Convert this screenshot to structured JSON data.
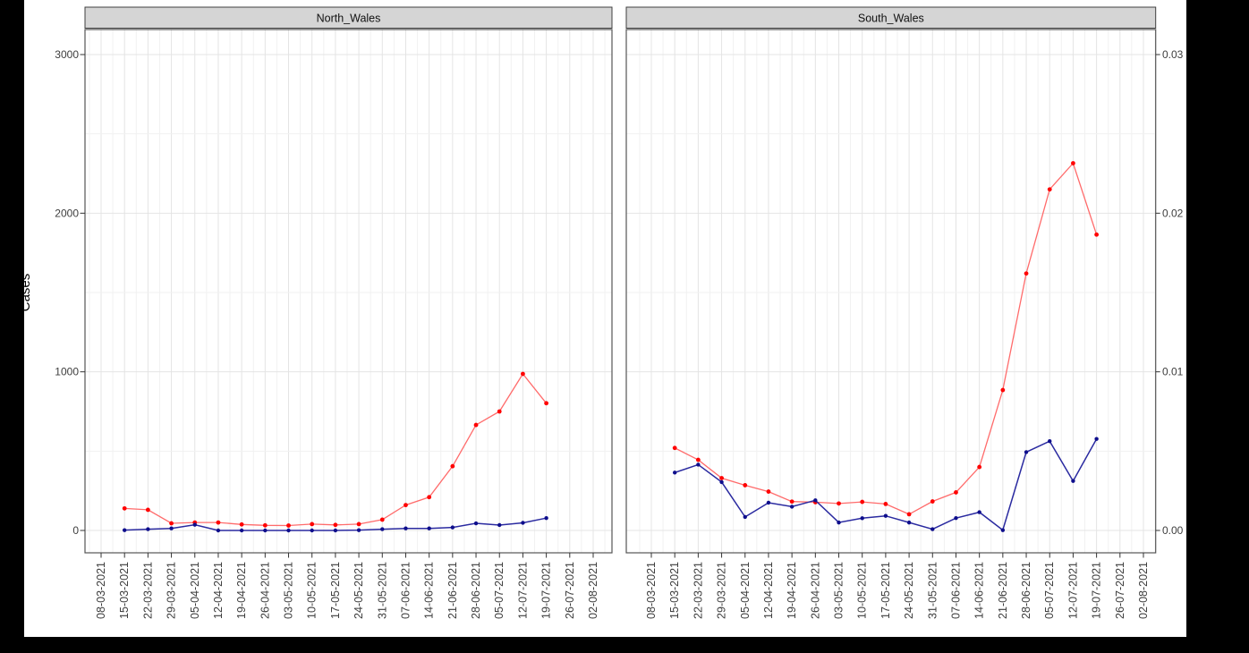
{
  "figure": {
    "ylabel": "Cases"
  },
  "chart_data": {
    "type": "line",
    "title": "",
    "ylabel": "Cases",
    "xlabel": "",
    "legend": "none",
    "grid": "on",
    "facet_titles": [
      "North_Wales",
      "South_Wales"
    ],
    "x_dates": [
      "08-03-2021",
      "15-03-2021",
      "22-03-2021",
      "29-03-2021",
      "05-04-2021",
      "12-04-2021",
      "19-04-2021",
      "26-04-2021",
      "03-05-2021",
      "10-05-2021",
      "17-05-2021",
      "24-05-2021",
      "31-05-2021",
      "07-06-2021",
      "14-06-2021",
      "21-06-2021",
      "28-06-2021",
      "05-07-2021",
      "12-07-2021",
      "19-07-2021",
      "26-07-2021",
      "02-08-2021"
    ],
    "y_left_axis": {
      "ticks": [
        0,
        1000,
        2000,
        3000
      ],
      "tick_labels": [
        "0",
        "1000",
        "2000",
        "3000"
      ],
      "minor_ticks": [
        500,
        1500,
        2500
      ],
      "range": [
        0,
        3300
      ]
    },
    "y_right_axis": {
      "ticks": [
        0.0,
        0.01,
        0.02,
        0.03
      ],
      "tick_labels": [
        "0.00",
        "0.01",
        "0.02",
        "0.03"
      ]
    },
    "colors": {
      "red_series": "#ff0000",
      "red_line": "#ff6b6b",
      "blue_series": "#0e0e8c",
      "blue_line": "#2a2aa0",
      "strip_fill": "#d5d5d5",
      "panel_border": "#555555",
      "grid_major": "#e4e4e4",
      "grid_minor": "#f1f1f1"
    },
    "facets": [
      {
        "title": "North_Wales",
        "series": [
          {
            "name": "cases-red",
            "color_key": "red",
            "start_index": 1,
            "values": [
              139,
              130,
              45,
              50,
              50,
              38,
              32,
              31,
              40,
              35,
              40,
              68,
              160,
              210,
              405,
              665,
              750,
              987,
              802
            ]
          },
          {
            "name": "cases-blue",
            "color_key": "blue",
            "start_index": 1,
            "values": [
              2,
              8,
              13,
              36,
              0,
              0,
              0,
              0,
              0,
              0,
              2,
              8,
              13,
              13,
              19,
              45,
              34,
              48,
              78
            ]
          }
        ]
      },
      {
        "title": "South_Wales",
        "series": [
          {
            "name": "cases-red",
            "color_key": "red",
            "start_index": 1,
            "values": [
              520,
              445,
              330,
              285,
              245,
              182,
              178,
              170,
              180,
              167,
              102,
              183,
              240,
              400,
              885,
              1620,
              2150,
              2315,
              1865
            ]
          },
          {
            "name": "cases-blue",
            "color_key": "blue",
            "start_index": 1,
            "values": [
              365,
              415,
              305,
              85,
              175,
              150,
              190,
              50,
              77,
              92,
              50,
              8,
              78,
              115,
              2,
              494,
              563,
              312,
              577
            ]
          }
        ]
      }
    ]
  }
}
